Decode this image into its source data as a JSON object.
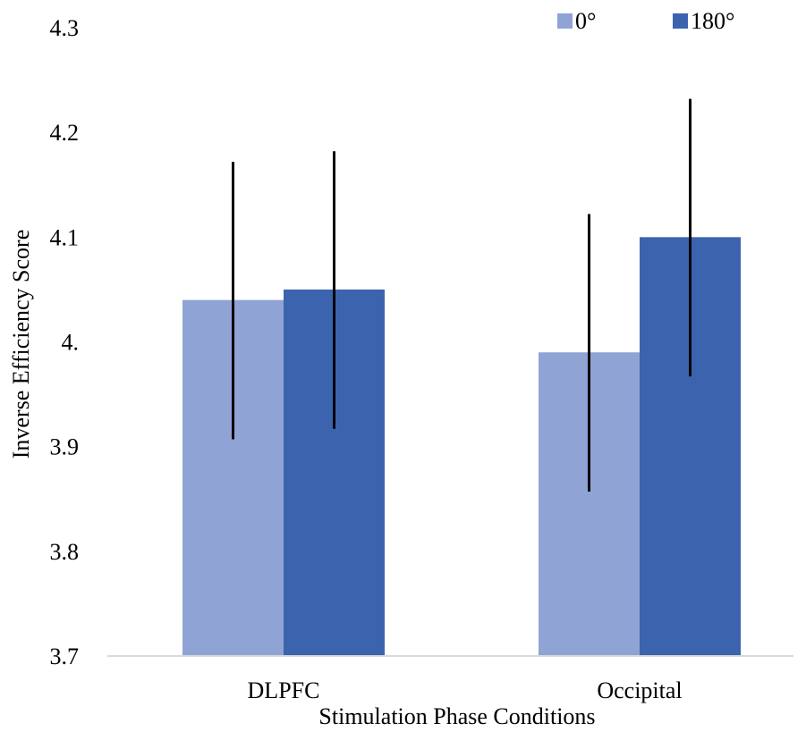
{
  "chart_data": {
    "type": "bar",
    "title": "",
    "xlabel": "Stimulation Phase Conditions",
    "ylabel": "Inverse Efficiency Score",
    "categories": [
      "DLPFC",
      "Occipital"
    ],
    "ylim": [
      3.7,
      4.3
    ],
    "yticks": [
      "3.7",
      "3.8",
      "3.9",
      "4.",
      "4.1",
      "4.2",
      "4.3"
    ],
    "ytick_values": [
      3.7,
      3.8,
      3.9,
      4.0,
      4.1,
      4.2,
      4.3
    ],
    "legend_position": "top-right",
    "grid": false,
    "series": [
      {
        "name": "0°",
        "color": "#8FA4D4",
        "values": [
          4.04,
          3.99
        ],
        "error_low": [
          3.907,
          3.857
        ],
        "error_high": [
          4.172,
          4.122
        ]
      },
      {
        "name": "180°",
        "color": "#3C64AE",
        "values": [
          4.05,
          4.1
        ],
        "error_low": [
          3.917,
          3.967
        ],
        "error_high": [
          4.182,
          4.232
        ]
      }
    ]
  }
}
